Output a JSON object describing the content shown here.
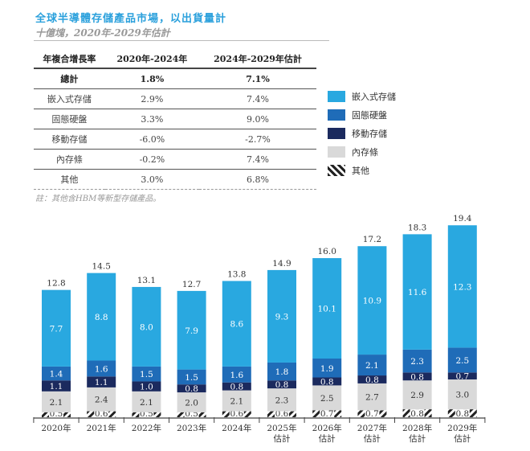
{
  "header": {
    "title": "全球半導體存儲產品市場，以出貨量計",
    "subtitle": "十億塊，2020年-2029年估計"
  },
  "table": {
    "columns": [
      "年複合增長率",
      "2020年-2024年",
      "2024年-2029年估計"
    ],
    "rows": [
      [
        "總計",
        "1.8%",
        "7.1%"
      ],
      [
        "嵌入式存儲",
        "2.9%",
        "7.4%"
      ],
      [
        "固態硬盤",
        "3.3%",
        "9.0%"
      ],
      [
        "移動存儲",
        "-6.0%",
        "-2.7%"
      ],
      [
        "內存條",
        "-0.2%",
        "7.4%"
      ],
      [
        "其他",
        "3.0%",
        "6.8%"
      ]
    ]
  },
  "note": "註：其他含HBM等新型存儲產品。",
  "chart_data": {
    "type": "bar",
    "stacked": true,
    "categories": [
      "2020年",
      "2021年",
      "2022年",
      "2023年",
      "2024年",
      "2025年\n估計",
      "2026年\n估計",
      "2027年\n估計",
      "2028年\n估計",
      "2029年\n估計"
    ],
    "series": [
      {
        "name": "其他",
        "color": "hatch",
        "values": [
          0.5,
          0.6,
          0.5,
          0.5,
          0.6,
          0.6,
          0.7,
          0.7,
          0.8,
          0.8
        ]
      },
      {
        "name": "內存條",
        "color": "#d9d9d9",
        "values": [
          2.1,
          2.4,
          2.1,
          2.0,
          2.1,
          2.3,
          2.5,
          2.7,
          2.9,
          3.0
        ]
      },
      {
        "name": "移動存儲",
        "color": "#1b2a5e",
        "values": [
          1.1,
          1.1,
          1.0,
          0.8,
          0.8,
          0.8,
          0.8,
          0.8,
          0.8,
          0.7
        ]
      },
      {
        "name": "固態硬盤",
        "color": "#1f6cb8",
        "values": [
          1.4,
          1.6,
          1.5,
          1.5,
          1.6,
          1.8,
          1.9,
          2.1,
          2.3,
          2.5
        ]
      },
      {
        "name": "嵌入式存儲",
        "color": "#29a8e0",
        "values": [
          7.7,
          8.8,
          8.0,
          7.9,
          8.6,
          9.3,
          10.1,
          10.9,
          11.6,
          12.3
        ]
      }
    ],
    "totals": [
      12.8,
      14.5,
      13.1,
      12.7,
      13.8,
      14.9,
      16.0,
      17.2,
      18.3,
      19.4
    ],
    "legend_order": [
      "嵌入式存儲",
      "固態硬盤",
      "移動存儲",
      "內存條",
      "其他"
    ],
    "legend_position": "right",
    "grid": false
  }
}
